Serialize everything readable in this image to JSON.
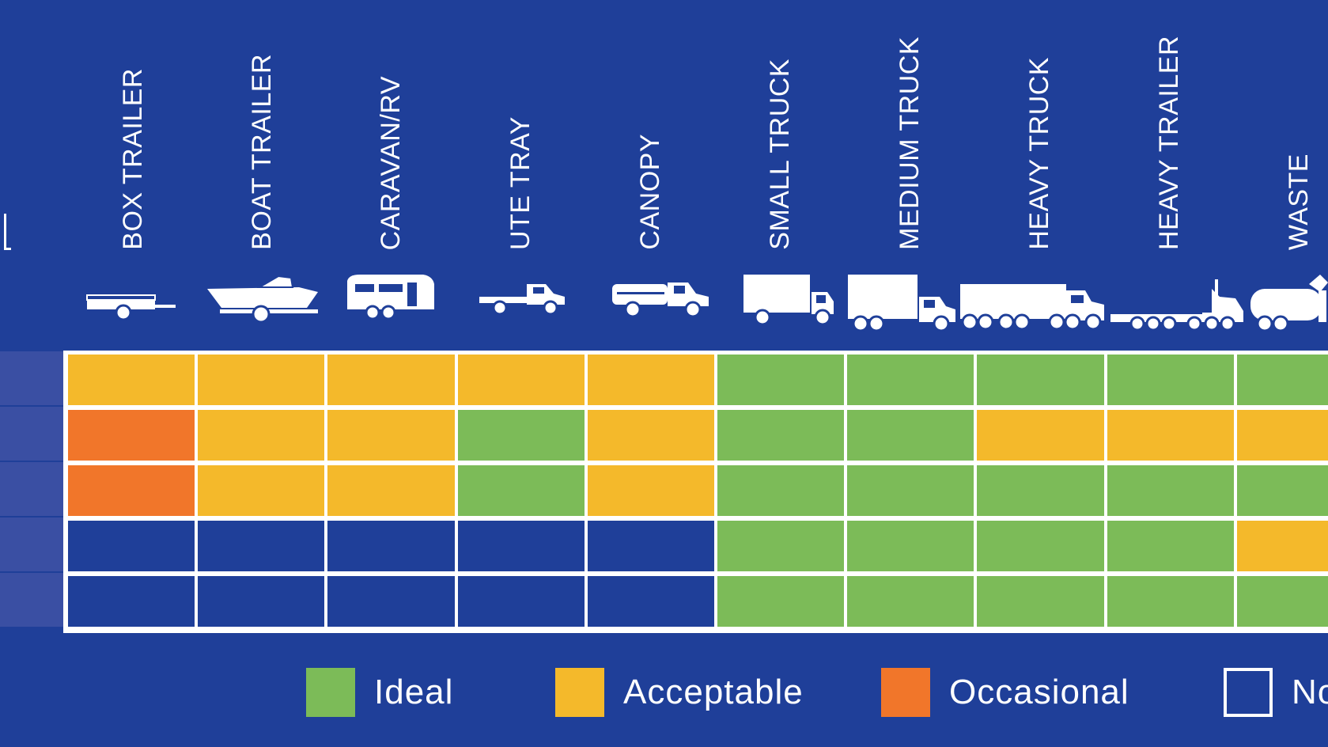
{
  "colors": {
    "background": "#1f3f99",
    "ideal": "#7cbb58",
    "acceptable": "#f4b92b",
    "occasional": "#f1762a",
    "not_suitable": "#1f3f99",
    "row_label_box": "#3a4fa3",
    "grid_line": "#ffffff"
  },
  "columns": [
    {
      "label": "BOX TRAILER",
      "icon": "box-trailer-icon"
    },
    {
      "label": "BOAT TRAILER",
      "icon": "boat-trailer-icon"
    },
    {
      "label": "CARAVAN/RV",
      "icon": "caravan-icon"
    },
    {
      "label": "UTE TRAY",
      "icon": "ute-tray-icon"
    },
    {
      "label": "CANOPY",
      "icon": "canopy-ute-icon"
    },
    {
      "label": "SMALL TRUCK",
      "icon": "small-truck-icon"
    },
    {
      "label": "MEDIUM TRUCK",
      "icon": "medium-truck-icon"
    },
    {
      "label": "HEAVY TRUCK",
      "icon": "heavy-truck-icon"
    },
    {
      "label": "HEAVY TRAILER",
      "icon": "heavy-trailer-icon"
    },
    {
      "label": "WASTE",
      "icon": "waste-truck-icon"
    }
  ],
  "rows": [
    [
      "acceptable",
      "acceptable",
      "acceptable",
      "acceptable",
      "acceptable",
      "ideal",
      "ideal",
      "ideal",
      "ideal",
      "ideal"
    ],
    [
      "occasional",
      "acceptable",
      "acceptable",
      "ideal",
      "acceptable",
      "ideal",
      "ideal",
      "acceptable",
      "acceptable",
      "acceptable"
    ],
    [
      "occasional",
      "acceptable",
      "acceptable",
      "ideal",
      "acceptable",
      "ideal",
      "ideal",
      "ideal",
      "ideal",
      "ideal"
    ],
    [
      "not_suitable",
      "not_suitable",
      "not_suitable",
      "not_suitable",
      "not_suitable",
      "ideal",
      "ideal",
      "ideal",
      "ideal",
      "acceptable"
    ],
    [
      "not_suitable",
      "not_suitable",
      "not_suitable",
      "not_suitable",
      "not_suitable",
      "ideal",
      "ideal",
      "ideal",
      "ideal",
      "ideal"
    ]
  ],
  "legend": {
    "ideal": "Ideal",
    "acceptable": "Acceptable",
    "occasional": "Occasional",
    "not_suitable": "No"
  }
}
